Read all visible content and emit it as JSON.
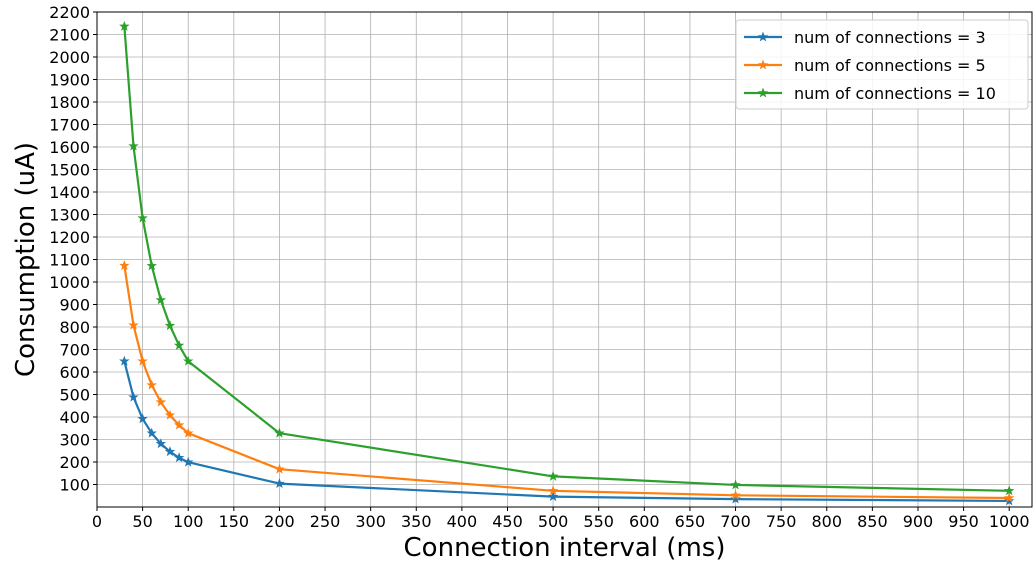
{
  "chart_data": {
    "type": "line",
    "title": "",
    "xlabel": "Connection interval (ms)",
    "ylabel": "Consumption (uA)",
    "xlim": [
      0,
      1025
    ],
    "ylim": [
      0,
      2200
    ],
    "x_ticks": [
      0,
      50,
      100,
      150,
      200,
      250,
      300,
      350,
      400,
      450,
      500,
      550,
      600,
      650,
      700,
      750,
      800,
      850,
      900,
      950,
      1000
    ],
    "y_ticks": [
      100,
      200,
      300,
      400,
      500,
      600,
      700,
      800,
      900,
      1000,
      1100,
      1200,
      1300,
      1400,
      1500,
      1600,
      1700,
      1800,
      1900,
      2000,
      2100,
      2200
    ],
    "grid": true,
    "marker": "star",
    "legend_position": "top-right",
    "series": [
      {
        "name": "num of connections = 3",
        "color": "#1f77b4",
        "points": [
          [
            30,
            648
          ],
          [
            40,
            488
          ],
          [
            50,
            392
          ],
          [
            60,
            328
          ],
          [
            70,
            281
          ],
          [
            80,
            246
          ],
          [
            90,
            219
          ],
          [
            100,
            199
          ],
          [
            200,
            104
          ],
          [
            500,
            46
          ],
          [
            700,
            35
          ],
          [
            1000,
            27
          ]
        ]
      },
      {
        "name": "num of connections = 5",
        "color": "#ff7f0e",
        "points": [
          [
            30,
            1073
          ],
          [
            40,
            808
          ],
          [
            50,
            648
          ],
          [
            60,
            542
          ],
          [
            70,
            466
          ],
          [
            80,
            408
          ],
          [
            90,
            364
          ],
          [
            100,
            328
          ],
          [
            200,
            168
          ],
          [
            500,
            72
          ],
          [
            700,
            52
          ],
          [
            1000,
            40
          ]
        ]
      },
      {
        "name": "num of connections = 10",
        "color": "#2ca02c",
        "points": [
          [
            30,
            2136
          ],
          [
            40,
            1604
          ],
          [
            50,
            1284
          ],
          [
            60,
            1072
          ],
          [
            70,
            920
          ],
          [
            80,
            806
          ],
          [
            90,
            718
          ],
          [
            100,
            648
          ],
          [
            200,
            328
          ],
          [
            500,
            136
          ],
          [
            700,
            98
          ],
          [
            1000,
            72
          ]
        ]
      }
    ]
  }
}
